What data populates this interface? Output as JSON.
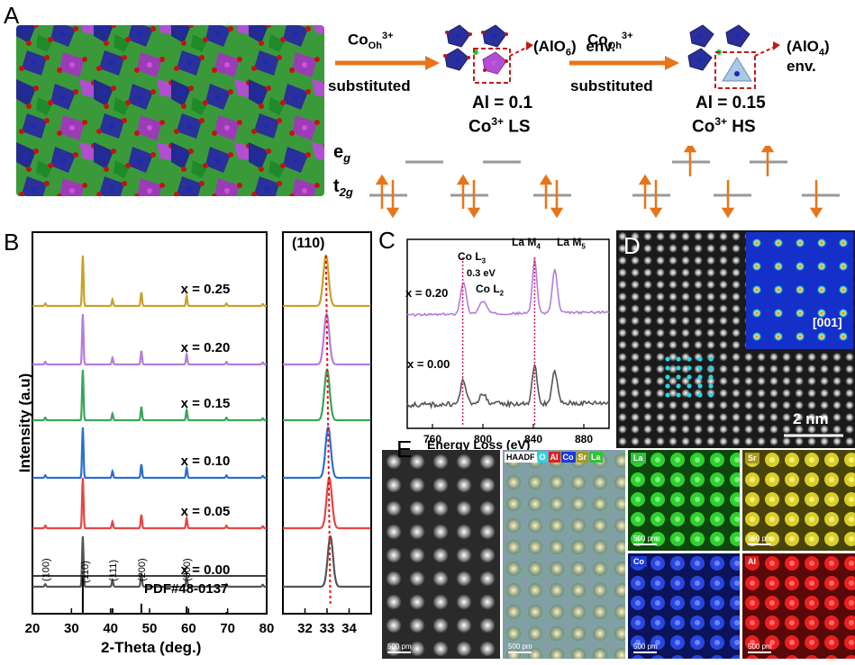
{
  "panels": {
    "A": "A",
    "B": "B",
    "C": "C",
    "D": "D",
    "E": "E"
  },
  "panelA": {
    "left_label": "Co",
    "left_sub": "Oh",
    "left_sup": "3+",
    "left_bottom": "substituted",
    "alo6": "(AlO",
    "alo6_sub": "6",
    "alo6_end": ")",
    "env": "env.",
    "mid_label": "Co",
    "mid_sub": "Oh",
    "mid_sup": "3+",
    "mid_bottom": "substituted",
    "alo4": "(AlO",
    "alo4_sub": "4",
    "alo4_end": ") env.",
    "al1": "Al = 0.1",
    "co_ls": "Co",
    "co_ls_sup": "3+",
    "co_ls_end": " LS",
    "al2": "Al = 0.15",
    "co_hs": "Co",
    "co_hs_sup": "3+",
    "co_hs_end": " HS",
    "eg": "e",
    "eg_sub": "g",
    "t2g": "t",
    "t2g_sub": "2g"
  },
  "panelB": {
    "ylabel": "Intensity (a.u)",
    "xlabel": "2-Theta (deg.)",
    "pdf": "PDF#48-0137",
    "inset_label": "(110)",
    "peaks_hkl": [
      "(100)",
      "(110)",
      "(111)",
      "(200)",
      "(300)"
    ]
  },
  "panelC": {
    "xlabel": "Energy Loss (eV)",
    "co_l3": "Co L",
    "co_l3_sub": "3",
    "shift": "0.3 eV",
    "co_l2": "Co L",
    "co_l2_sub": "2",
    "la_m4": "La M",
    "la_m4_sub": "4",
    "la_m5": "La M",
    "la_m5_sub": "5",
    "label_top": "x = 0.20",
    "label_bottom": "x = 0.00"
  },
  "panelD": {
    "zone": "[001]",
    "scale": "2 nm"
  },
  "panelE": {
    "legend": [
      "HAADF",
      "O",
      "Al",
      "Co",
      "Sr",
      "La"
    ],
    "maps": [
      "La",
      "Sr",
      "Co",
      "Al"
    ],
    "scale": "500 pm"
  },
  "colors": {
    "orange": "#e8751a",
    "x025": "#c9a227",
    "x020": "#b57ddc",
    "x015": "#3aa55a",
    "x010": "#2b6fd1",
    "x005": "#e64545",
    "x000": "#555555",
    "magenta": "#d4186c"
  },
  "chart_data": [
    {
      "type": "line",
      "title": "",
      "xlabel": "2-Theta (deg.)",
      "ylabel": "Intensity (a.u)",
      "xlim": [
        20,
        80
      ],
      "x_ticks": [
        20,
        30,
        40,
        50,
        60,
        70,
        80
      ],
      "peak_positions": [
        23.3,
        32.9,
        40.5,
        47.9,
        59.5,
        69.7,
        79.0
      ],
      "peak_heights": [
        0.05,
        1.0,
        0.13,
        0.27,
        0.2,
        0.05,
        0.04
      ],
      "series": [
        {
          "name": "x = 0.25",
          "offset": 5
        },
        {
          "name": "x = 0.20",
          "offset": 4
        },
        {
          "name": "x = 0.15",
          "offset": 3
        },
        {
          "name": "x = 0.10",
          "offset": 2
        },
        {
          "name": "x = 0.05",
          "offset": 1
        },
        {
          "name": "x = 0.00",
          "offset": 0
        }
      ],
      "reference_lines": [
        32.9,
        40.5,
        47.9,
        59.5,
        69.7
      ]
    },
    {
      "type": "line",
      "xlim": [
        31,
        35
      ],
      "x_ticks": [
        32,
        33,
        34
      ],
      "peak_centers": [
        32.95,
        32.98,
        33.0,
        33.05,
        33.1,
        33.15
      ]
    },
    {
      "type": "line",
      "xlabel": "Energy Loss (eV)",
      "xlim": [
        740,
        900
      ],
      "x_ticks": [
        760,
        800,
        840,
        880
      ],
      "markers": [
        784,
        841
      ]
    }
  ]
}
